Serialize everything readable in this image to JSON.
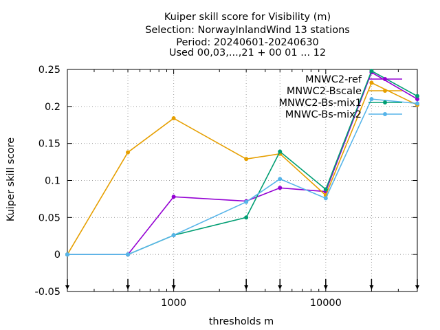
{
  "chart_data": {
    "type": "line",
    "title_lines": [
      "Kuiper skill score  for Visibility (m)",
      "Selection: NorwayInlandWind     13 stations",
      "Period: 20240601-20240630",
      "Used 00,03,...,21 + 00 01 ... 12"
    ],
    "xlabel": "thresholds m",
    "ylabel": "Kuiper skill score",
    "x_scale": "log",
    "xlim": [
      200,
      40000
    ],
    "ylim": [
      -0.05,
      0.25
    ],
    "x_ticks": [
      {
        "value": 1000,
        "label": "1000"
      },
      {
        "value": 10000,
        "label": "10000"
      }
    ],
    "y_ticks": [
      {
        "value": -0.05,
        "label": "-0.05"
      },
      {
        "value": 0,
        "label": "0"
      },
      {
        "value": 0.05,
        "label": "0.05"
      },
      {
        "value": 0.1,
        "label": "0.1"
      },
      {
        "value": 0.15,
        "label": "0.15"
      },
      {
        "value": 0.2,
        "label": "0.2"
      },
      {
        "value": 0.25,
        "label": "0.25"
      }
    ],
    "arrow_markers_x": [
      200,
      500,
      1000,
      3000,
      5000,
      10000,
      20000,
      40000
    ],
    "grid": true,
    "legend_position": "top-right",
    "series": [
      {
        "name": "MNWC2-ref",
        "color": "#9400d3",
        "x": [
          200,
          500,
          1000,
          3000,
          5000,
          10000,
          20000,
          40000
        ],
        "y": [
          0,
          0,
          0.078,
          0.072,
          0.09,
          0.085,
          0.246,
          0.21
        ]
      },
      {
        "name": "MNWC2-Bscale",
        "color": "#e69f00",
        "x": [
          200,
          500,
          1000,
          3000,
          5000,
          10000,
          20000,
          40000
        ],
        "y": [
          0,
          0.138,
          0.184,
          0.129,
          0.136,
          0.08,
          0.232,
          0.202
        ]
      },
      {
        "name": "MNWC2-Bs-mix1",
        "color": "#009e73",
        "x": [
          200,
          500,
          1000,
          3000,
          5000,
          10000,
          20000,
          40000
        ],
        "y": [
          0,
          0,
          0.026,
          0.05,
          0.139,
          0.088,
          0.248,
          0.214
        ]
      },
      {
        "name": "MNWC-Bs-mix2",
        "color": "#56b4e9",
        "x": [
          200,
          500,
          1000,
          3000,
          5000,
          10000,
          20000,
          40000
        ],
        "y": [
          0,
          0,
          0.026,
          0.071,
          0.102,
          0.076,
          0.21,
          0.204
        ]
      }
    ]
  }
}
